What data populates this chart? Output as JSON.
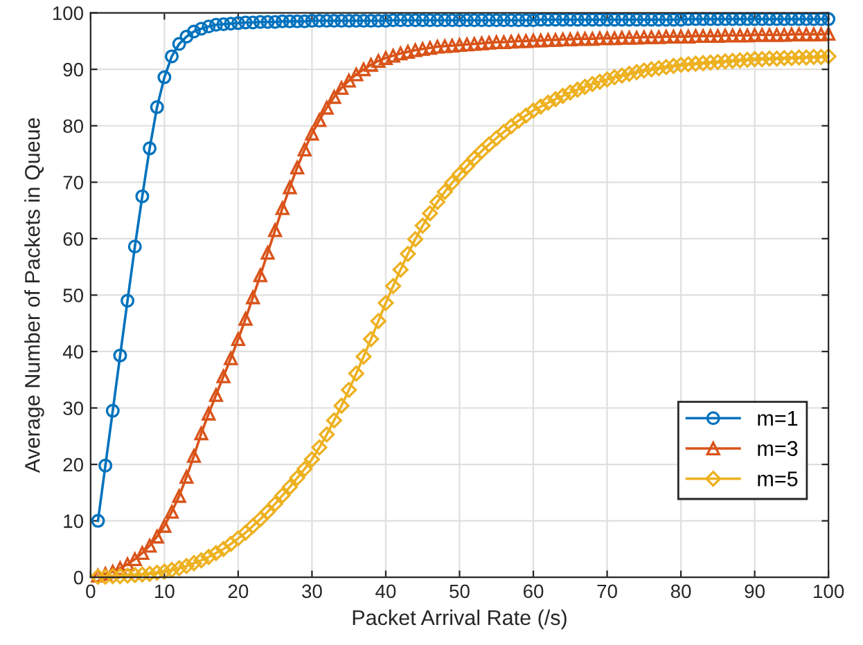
{
  "chart_data": {
    "type": "line",
    "xlabel": "Packet Arrival Rate (/s)",
    "ylabel": "Average Number of Packets in Queue",
    "x": [
      1,
      2,
      3,
      4,
      5,
      6,
      7,
      8,
      9,
      10,
      11,
      12,
      13,
      14,
      15,
      16,
      17,
      18,
      19,
      20,
      21,
      22,
      23,
      24,
      25,
      26,
      27,
      28,
      29,
      30,
      31,
      32,
      33,
      34,
      35,
      36,
      37,
      38,
      39,
      40,
      41,
      42,
      43,
      44,
      45,
      46,
      47,
      48,
      49,
      50,
      51,
      52,
      53,
      54,
      55,
      56,
      57,
      58,
      59,
      60,
      61,
      62,
      63,
      64,
      65,
      66,
      67,
      68,
      69,
      70,
      71,
      72,
      73,
      74,
      75,
      76,
      77,
      78,
      79,
      80,
      81,
      82,
      83,
      84,
      85,
      86,
      87,
      88,
      89,
      90,
      91,
      92,
      93,
      94,
      95,
      96,
      97,
      98,
      99,
      100
    ],
    "series": [
      {
        "name": "m=1",
        "color": "#0072bd",
        "marker": "circle",
        "values": [
          10.0,
          19.8,
          29.5,
          39.3,
          49.0,
          58.6,
          67.5,
          76.0,
          83.3,
          88.6,
          92.3,
          94.5,
          95.8,
          96.7,
          97.2,
          97.6,
          97.9,
          98.0,
          98.1,
          98.2,
          98.3,
          98.3,
          98.4,
          98.4,
          98.4,
          98.5,
          98.5,
          98.5,
          98.5,
          98.6,
          98.6,
          98.6,
          98.6,
          98.6,
          98.6,
          98.6,
          98.6,
          98.6,
          98.6,
          98.6,
          98.7,
          98.7,
          98.7,
          98.7,
          98.7,
          98.7,
          98.7,
          98.7,
          98.7,
          98.7,
          98.7,
          98.7,
          98.7,
          98.7,
          98.7,
          98.7,
          98.7,
          98.7,
          98.7,
          98.7,
          98.8,
          98.8,
          98.8,
          98.8,
          98.8,
          98.8,
          98.8,
          98.8,
          98.8,
          98.8,
          98.8,
          98.8,
          98.8,
          98.8,
          98.8,
          98.8,
          98.8,
          98.8,
          98.8,
          98.8,
          98.9,
          98.9,
          98.9,
          98.9,
          98.9,
          98.9,
          98.9,
          98.9,
          98.9,
          98.9,
          98.9,
          98.9,
          98.9,
          98.9,
          98.9,
          98.9,
          98.9,
          98.9,
          98.9,
          98.9
        ]
      },
      {
        "name": "m=3",
        "color": "#d95319",
        "marker": "triangle",
        "values": [
          0.3,
          0.6,
          1.0,
          1.6,
          2.3,
          3.2,
          4.3,
          5.6,
          7.2,
          9.1,
          11.6,
          14.4,
          17.8,
          21.5,
          25.5,
          29.0,
          32.3,
          35.6,
          38.8,
          42.2,
          45.8,
          49.6,
          53.5,
          57.5,
          61.5,
          65.4,
          69.1,
          72.6,
          75.8,
          78.6,
          81.0,
          83.2,
          85.1,
          86.7,
          88.0,
          89.1,
          90.0,
          90.8,
          91.5,
          92.0,
          92.4,
          92.8,
          93.1,
          93.4,
          93.6,
          93.8,
          94.0,
          94.1,
          94.2,
          94.3,
          94.4,
          94.5,
          94.6,
          94.7,
          94.8,
          94.8,
          94.9,
          95.0,
          95.0,
          95.1,
          95.1,
          95.2,
          95.2,
          95.3,
          95.3,
          95.4,
          95.4,
          95.4,
          95.5,
          95.5,
          95.5,
          95.6,
          95.6,
          95.6,
          95.7,
          95.7,
          95.7,
          95.8,
          95.8,
          95.8,
          95.8,
          95.9,
          95.9,
          95.9,
          95.9,
          96.0,
          96.0,
          96.0,
          96.0,
          96.1,
          96.1,
          96.1,
          96.1,
          96.1,
          96.2,
          96.2,
          96.2,
          96.2,
          96.2,
          96.3
        ]
      },
      {
        "name": "m=5",
        "color": "#edb120",
        "marker": "diamond",
        "values": [
          0.1,
          0.1,
          0.2,
          0.2,
          0.3,
          0.4,
          0.5,
          0.6,
          0.8,
          1.0,
          1.3,
          1.6,
          2.0,
          2.5,
          3.0,
          3.6,
          4.3,
          5.0,
          5.9,
          6.9,
          7.9,
          9.1,
          10.3,
          11.6,
          13.0,
          14.5,
          16.0,
          17.6,
          19.2,
          20.9,
          23.0,
          25.3,
          27.8,
          30.4,
          33.2,
          36.1,
          39.1,
          42.2,
          45.4,
          48.6,
          51.6,
          54.5,
          57.3,
          59.9,
          62.3,
          64.5,
          66.5,
          68.3,
          69.9,
          71.4,
          72.8,
          74.2,
          75.5,
          76.7,
          77.8,
          78.9,
          79.9,
          80.9,
          81.8,
          82.7,
          83.4,
          84.1,
          84.7,
          85.3,
          85.9,
          86.4,
          86.9,
          87.4,
          87.8,
          88.2,
          88.6,
          88.9,
          89.2,
          89.5,
          89.8,
          90.0,
          90.2,
          90.4,
          90.6,
          90.8,
          90.9,
          91.0,
          91.1,
          91.2,
          91.3,
          91.4,
          91.5,
          91.6,
          91.7,
          91.8,
          91.8,
          91.9,
          91.9,
          92.0,
          92.0,
          92.1,
          92.1,
          92.2,
          92.2,
          92.3
        ]
      }
    ],
    "xlim": [
      0,
      100
    ],
    "xticks": [
      0,
      10,
      20,
      30,
      40,
      50,
      60,
      70,
      80,
      90,
      100
    ],
    "ylim": [
      0,
      100
    ],
    "yticks": [
      0,
      10,
      20,
      30,
      40,
      50,
      60,
      70,
      80,
      90,
      100
    ],
    "grid": true,
    "legend": "lower right",
    "line_style": "solid"
  }
}
